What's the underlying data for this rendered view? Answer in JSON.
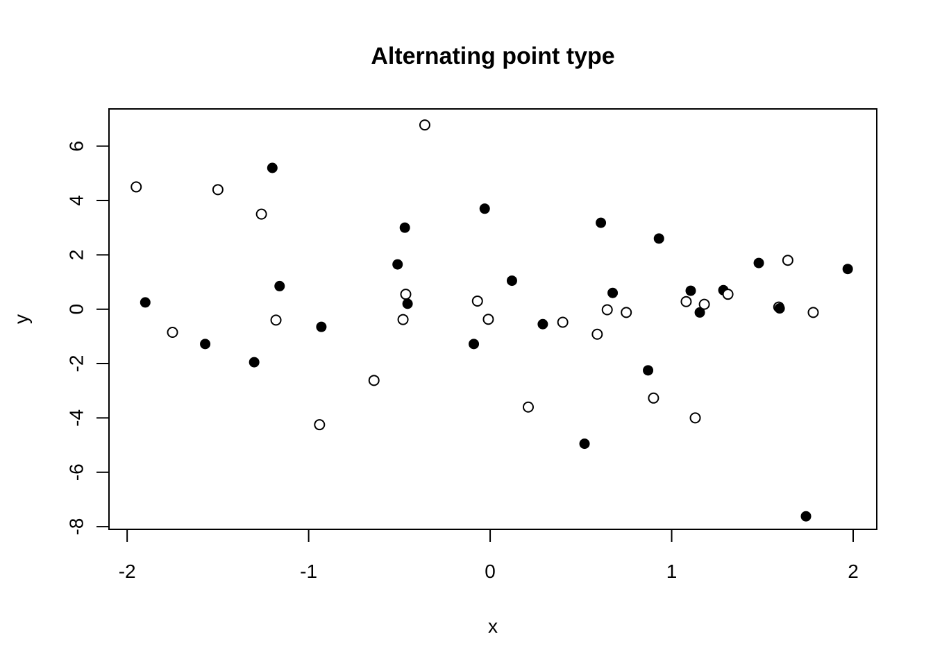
{
  "chart_data": {
    "type": "scatter",
    "title": "Alternating point type",
    "xlabel": "x",
    "ylabel": "y",
    "xlim": [
      -2.1,
      2.13
    ],
    "ylim": [
      -8.1,
      7.37
    ],
    "xticks": [
      -2,
      -1,
      0,
      1,
      2
    ],
    "xtick_labels": [
      "-2",
      "-1",
      "0",
      "1",
      "2"
    ],
    "yticks": [
      -8,
      -6,
      -4,
      -2,
      0,
      2,
      4,
      6
    ],
    "ytick_labels": [
      "-8",
      "-6",
      "-4",
      "-2",
      "0",
      "2",
      "4",
      "6"
    ],
    "grid": false,
    "legend": "none",
    "marker_types": {
      "open": "open circle",
      "filled": "filled circle"
    },
    "points": [
      {
        "x": -1.95,
        "y": 4.5,
        "style": "open"
      },
      {
        "x": -1.9,
        "y": 0.25,
        "style": "filled"
      },
      {
        "x": -1.75,
        "y": -0.85,
        "style": "open"
      },
      {
        "x": -1.57,
        "y": -1.28,
        "style": "filled"
      },
      {
        "x": -1.5,
        "y": 4.4,
        "style": "open"
      },
      {
        "x": -1.3,
        "y": -1.95,
        "style": "filled"
      },
      {
        "x": -1.26,
        "y": 3.5,
        "style": "open"
      },
      {
        "x": -1.2,
        "y": 5.2,
        "style": "filled"
      },
      {
        "x": -1.18,
        "y": -0.4,
        "style": "open"
      },
      {
        "x": -1.16,
        "y": 0.85,
        "style": "filled"
      },
      {
        "x": -0.94,
        "y": -4.25,
        "style": "open"
      },
      {
        "x": -0.93,
        "y": -0.65,
        "style": "filled"
      },
      {
        "x": -0.64,
        "y": -2.62,
        "style": "open"
      },
      {
        "x": -0.51,
        "y": 1.65,
        "style": "filled"
      },
      {
        "x": -0.48,
        "y": -0.38,
        "style": "open"
      },
      {
        "x": -0.47,
        "y": 3.0,
        "style": "filled"
      },
      {
        "x": -0.465,
        "y": 0.55,
        "style": "open"
      },
      {
        "x": -0.455,
        "y": 0.2,
        "style": "filled"
      },
      {
        "x": -0.36,
        "y": 6.78,
        "style": "open"
      },
      {
        "x": -0.09,
        "y": -1.28,
        "style": "filled"
      },
      {
        "x": -0.07,
        "y": 0.3,
        "style": "open"
      },
      {
        "x": -0.03,
        "y": 3.7,
        "style": "filled"
      },
      {
        "x": -0.01,
        "y": -0.37,
        "style": "open"
      },
      {
        "x": 0.12,
        "y": 1.05,
        "style": "filled"
      },
      {
        "x": 0.21,
        "y": -3.6,
        "style": "open"
      },
      {
        "x": 0.29,
        "y": -0.55,
        "style": "filled"
      },
      {
        "x": 0.4,
        "y": -0.48,
        "style": "open"
      },
      {
        "x": 0.52,
        "y": -4.95,
        "style": "filled"
      },
      {
        "x": 0.59,
        "y": -0.92,
        "style": "open"
      },
      {
        "x": 0.61,
        "y": 3.18,
        "style": "filled"
      },
      {
        "x": 0.645,
        "y": -0.02,
        "style": "open"
      },
      {
        "x": 0.675,
        "y": 0.6,
        "style": "filled"
      },
      {
        "x": 0.75,
        "y": -0.12,
        "style": "open"
      },
      {
        "x": 0.87,
        "y": -2.25,
        "style": "filled"
      },
      {
        "x": 0.9,
        "y": -3.27,
        "style": "open"
      },
      {
        "x": 0.93,
        "y": 2.6,
        "style": "filled"
      },
      {
        "x": 1.08,
        "y": 0.28,
        "style": "open"
      },
      {
        "x": 1.105,
        "y": 0.68,
        "style": "filled"
      },
      {
        "x": 1.13,
        "y": -4.0,
        "style": "open"
      },
      {
        "x": 1.155,
        "y": -0.12,
        "style": "filled"
      },
      {
        "x": 1.18,
        "y": 0.18,
        "style": "open"
      },
      {
        "x": 1.285,
        "y": 0.7,
        "style": "filled"
      },
      {
        "x": 1.31,
        "y": 0.55,
        "style": "open"
      },
      {
        "x": 1.48,
        "y": 1.7,
        "style": "filled"
      },
      {
        "x": 1.59,
        "y": 0.08,
        "style": "open"
      },
      {
        "x": 1.595,
        "y": 0.03,
        "style": "filled"
      },
      {
        "x": 1.64,
        "y": 1.8,
        "style": "open"
      },
      {
        "x": 1.74,
        "y": -7.62,
        "style": "filled"
      },
      {
        "x": 1.78,
        "y": -0.12,
        "style": "open"
      },
      {
        "x": 1.97,
        "y": 1.48,
        "style": "filled"
      }
    ]
  }
}
